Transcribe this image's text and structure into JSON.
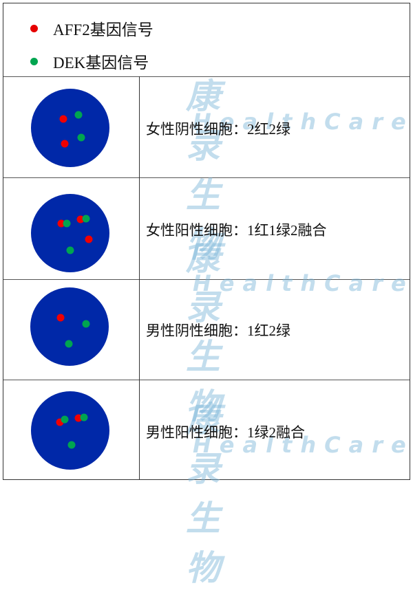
{
  "legend": [
    {
      "label": "AFF2基因信号",
      "color": "#e60000"
    },
    {
      "label": "DEK基因信号",
      "color": "#00a550"
    }
  ],
  "colors": {
    "nucleus": "#0028a8",
    "red": "#f00000",
    "green": "#00a550",
    "watermark": "#9ccbe6"
  },
  "rows": [
    {
      "label": "女性阴性细胞：2红2绿",
      "signals": {
        "red": 2,
        "green": 2,
        "fusion": 0
      }
    },
    {
      "label": "女性阳性细胞：1红1绿2融合",
      "signals": {
        "red": 1,
        "green": 1,
        "fusion": 2
      }
    },
    {
      "label": "男性阴性细胞：1红2绿",
      "signals": {
        "red": 1,
        "green": 2,
        "fusion": 0
      }
    },
    {
      "label": "男性阳性细胞：1绿2融合",
      "signals": {
        "red": 0,
        "green": 1,
        "fusion": 2
      }
    }
  ],
  "watermark": {
    "cn": "康录生物",
    "en": "HealthCare"
  }
}
